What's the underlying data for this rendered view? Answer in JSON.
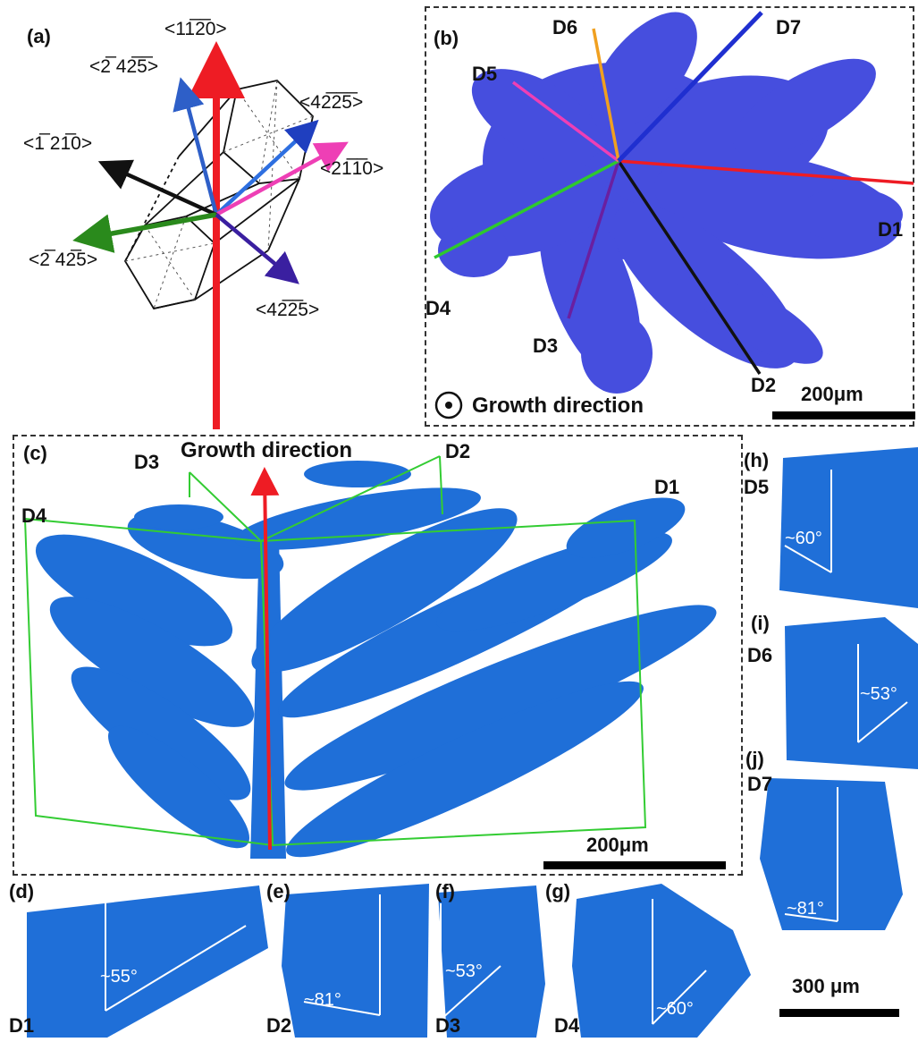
{
  "panels": {
    "a": "(a)",
    "b": "(b)",
    "c": "(c)",
    "d": "(d)",
    "e": "(e)",
    "f": "(f)",
    "g": "(g)",
    "h": "(h)",
    "i": "(i)",
    "j": "(j)"
  },
  "miller_indices": {
    "red": "<11̅2̅0>",
    "blue": "<2̅ 42̅5̅>",
    "dark_blue": "<42̅2̅5̅>",
    "magenta": "<21̅1̅0>",
    "black": "<1̅ 21̅0>",
    "green": "<2̅ 42̅5>",
    "purple": "<42̅2̅5>"
  },
  "directions": [
    "D1",
    "D2",
    "D3",
    "D4",
    "D5",
    "D6",
    "D7"
  ],
  "growth_direction": "Growth direction",
  "scale_bars": {
    "b": "200μm",
    "c": "200μm",
    "hij": "300 μm"
  },
  "angles": {
    "d": "~55°",
    "e": "~81°",
    "f": "~53°",
    "g": "~60°",
    "h": "~60°",
    "i": "~53°",
    "j": "~81°"
  },
  "colors": {
    "red": "#ee1c24",
    "blue": "#2e5fc8",
    "dark_blue": "#1f3fbf",
    "magenta": "#ee3fb5",
    "black": "#111111",
    "green": "#2a8a1c",
    "purple": "#3a1fa0",
    "orange": "#f0a020",
    "dendrite_b": "#3d45dd",
    "dendrite_c": "#1f6fd8",
    "frame_green": "#33cc33"
  }
}
